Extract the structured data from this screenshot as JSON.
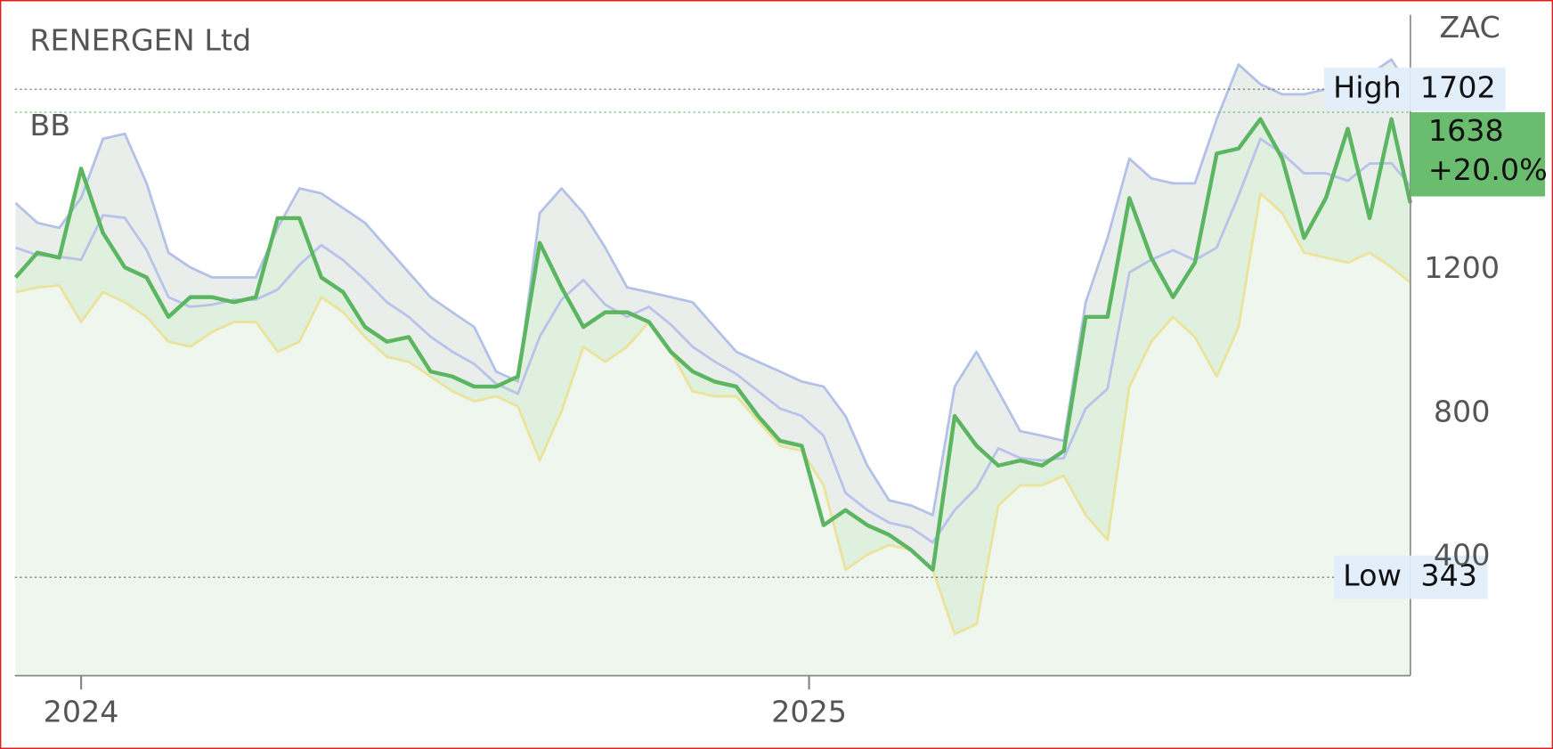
{
  "chart_data": {
    "type": "line",
    "title": "RENERGEN Ltd",
    "indicator": "BB",
    "currency": "ZAC",
    "xlim": [
      2023.909,
      2025.826
    ],
    "xticks": [
      2024,
      2025
    ],
    "ylim": [
      69,
      1909
    ],
    "yticks": [
      400,
      800,
      1200
    ],
    "x": [
      2023.91,
      2023.94,
      2023.97,
      2024.0,
      2024.03,
      2024.06,
      2024.09,
      2024.12,
      2024.15,
      2024.18,
      2024.21,
      2024.24,
      2024.27,
      2024.3,
      2024.33,
      2024.36,
      2024.39,
      2024.42,
      2024.45,
      2024.48,
      2024.51,
      2024.54,
      2024.57,
      2024.6,
      2024.63,
      2024.66,
      2024.69,
      2024.72,
      2024.75,
      2024.78,
      2024.81,
      2024.84,
      2024.87,
      2024.9,
      2024.93,
      2024.96,
      2024.99,
      2025.02,
      2025.05,
      2025.08,
      2025.11,
      2025.14,
      2025.17,
      2025.2,
      2025.23,
      2025.26,
      2025.29,
      2025.32,
      2025.35,
      2025.38,
      2025.41,
      2025.44,
      2025.47,
      2025.5,
      2025.53,
      2025.56,
      2025.59,
      2025.62,
      2025.65,
      2025.68,
      2025.71,
      2025.74,
      2025.77,
      2025.8,
      2025.826
    ],
    "series": [
      {
        "color": "#b3c0e8",
        "role": "upper",
        "values": [
          1385,
          1330,
          1316,
          1399,
          1564,
          1578,
          1440,
          1247,
          1206,
          1178,
          1178,
          1178,
          1316,
          1426,
          1412,
          1371,
          1330,
          1261,
          1192,
          1123,
          1081,
          1040,
          916,
          888,
          1357,
          1426,
          1357,
          1261,
          1150,
          1137,
          1123,
          1109,
          1040,
          971,
          943,
          916,
          888,
          874,
          792,
          654,
          557,
          543,
          516,
          874,
          971,
          861,
          750,
          737,
          723,
          1109,
          1288,
          1509,
          1454,
          1440,
          1440,
          1619,
          1771,
          1716,
          1688,
          1688,
          1702,
          1674,
          1743,
          1785,
          1702
        ]
      },
      {
        "color": "#b8c2ea",
        "role": "middle",
        "values": [
          1261,
          1240,
          1236,
          1227,
          1351,
          1344,
          1254,
          1123,
          1096,
          1102,
          1116,
          1116,
          1144,
          1213,
          1268,
          1226,
          1171,
          1109,
          1068,
          1013,
          971,
          937,
          882,
          854,
          1013,
          1116,
          1171,
          1102,
          1068,
          1096,
          1047,
          985,
          944,
          909,
          861,
          813,
          792,
          737,
          578,
          530,
          495,
          481,
          440,
          530,
          592,
          702,
          675,
          668,
          675,
          813,
          868,
          1192,
          1227,
          1254,
          1226,
          1261,
          1406,
          1564,
          1523,
          1468,
          1468,
          1447,
          1495,
          1496,
          1433
        ]
      },
      {
        "color": "#ece39a",
        "role": "lower",
        "values": [
          1137,
          1150,
          1156,
          1054,
          1137,
          1109,
          1068,
          999,
          985,
          1026,
          1054,
          1054,
          971,
          999,
          1123,
          1081,
          1012,
          957,
          943,
          902,
          861,
          833,
          847,
          819,
          668,
          806,
          985,
          943,
          985,
          1054,
          971,
          861,
          847,
          847,
          778,
          709,
          695,
          599,
          364,
          406,
          433,
          419,
          364,
          185,
          212,
          543,
          599,
          599,
          626,
          516,
          447,
          874,
          999,
          1068,
          1012,
          902,
          1040,
          1412,
          1357,
          1247,
          1233,
          1219,
          1247,
          1206,
          1164
        ]
      },
      {
        "color": "#5cb561",
        "role": "price",
        "values": [
          1178,
          1247,
          1233,
          1481,
          1302,
          1206,
          1178,
          1068,
          1123,
          1123,
          1109,
          1123,
          1343,
          1343,
          1178,
          1137,
          1040,
          999,
          1012,
          916,
          902,
          874,
          874,
          902,
          1274,
          1150,
          1040,
          1081,
          1081,
          1054,
          971,
          916,
          888,
          874,
          792,
          723,
          709,
          488,
          530,
          488,
          461,
          419,
          364,
          792,
          709,
          654,
          668,
          654,
          695,
          1068,
          1068,
          1399,
          1233,
          1123,
          1219,
          1523,
          1537,
          1619,
          1509,
          1288,
          1399,
          1592,
          1343,
          1619,
          1385
        ]
      }
    ],
    "high": {
      "label": "High",
      "value": 1702
    },
    "low": {
      "label": "Low",
      "value": 343
    },
    "last": {
      "value": 1638,
      "change": {
        "value": 20.0,
        "label": "+20.0%"
      }
    }
  }
}
